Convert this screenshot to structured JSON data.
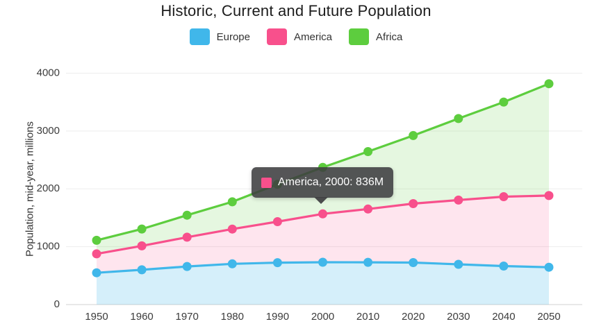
{
  "title": "Historic, Current and Future Population",
  "y_axis_title": "Population, mid-year, millions",
  "legend": {
    "items": [
      {
        "label": "Europe",
        "color": "#40B7EA"
      },
      {
        "label": "America",
        "color": "#F8508C"
      },
      {
        "label": "Africa",
        "color": "#5DCD3E"
      }
    ]
  },
  "tooltip": {
    "series": "America",
    "year": "2000",
    "value": "836M",
    "text": "America, 2000: 836M",
    "color": "#F8508C",
    "background": "#3E3E40"
  },
  "chart_data": {
    "type": "area",
    "stacked": true,
    "title": "Historic, Current and Future Population",
    "ylabel": "Population, mid-year, millions",
    "xlabel": "",
    "x": [
      1950,
      1960,
      1970,
      1980,
      1990,
      2000,
      2010,
      2020,
      2030,
      2040,
      2050
    ],
    "yticks": [
      0,
      1000,
      2000,
      3000,
      4000
    ],
    "ylim": [
      0,
      4000
    ],
    "grid": "horizontal",
    "legend_position": "top",
    "series": [
      {
        "name": "Europe",
        "color": "#40B7EA",
        "values": [
          549,
          601,
          658,
          704,
          725,
          732,
          730,
          726,
          696,
          666,
          645
        ]
      },
      {
        "name": "America",
        "color": "#F8508C",
        "values": [
          328,
          414,
          507,
          601,
          708,
          836,
          921,
          1019,
          1110,
          1199,
          1239
        ]
      },
      {
        "name": "Africa",
        "color": "#5DCD3E",
        "values": [
          234,
          291,
          380,
          471,
          647,
          803,
          994,
          1177,
          1409,
          1636,
          1934
        ]
      }
    ],
    "highlighted_point": {
      "series": "America",
      "x": 2000,
      "value": 836
    }
  }
}
